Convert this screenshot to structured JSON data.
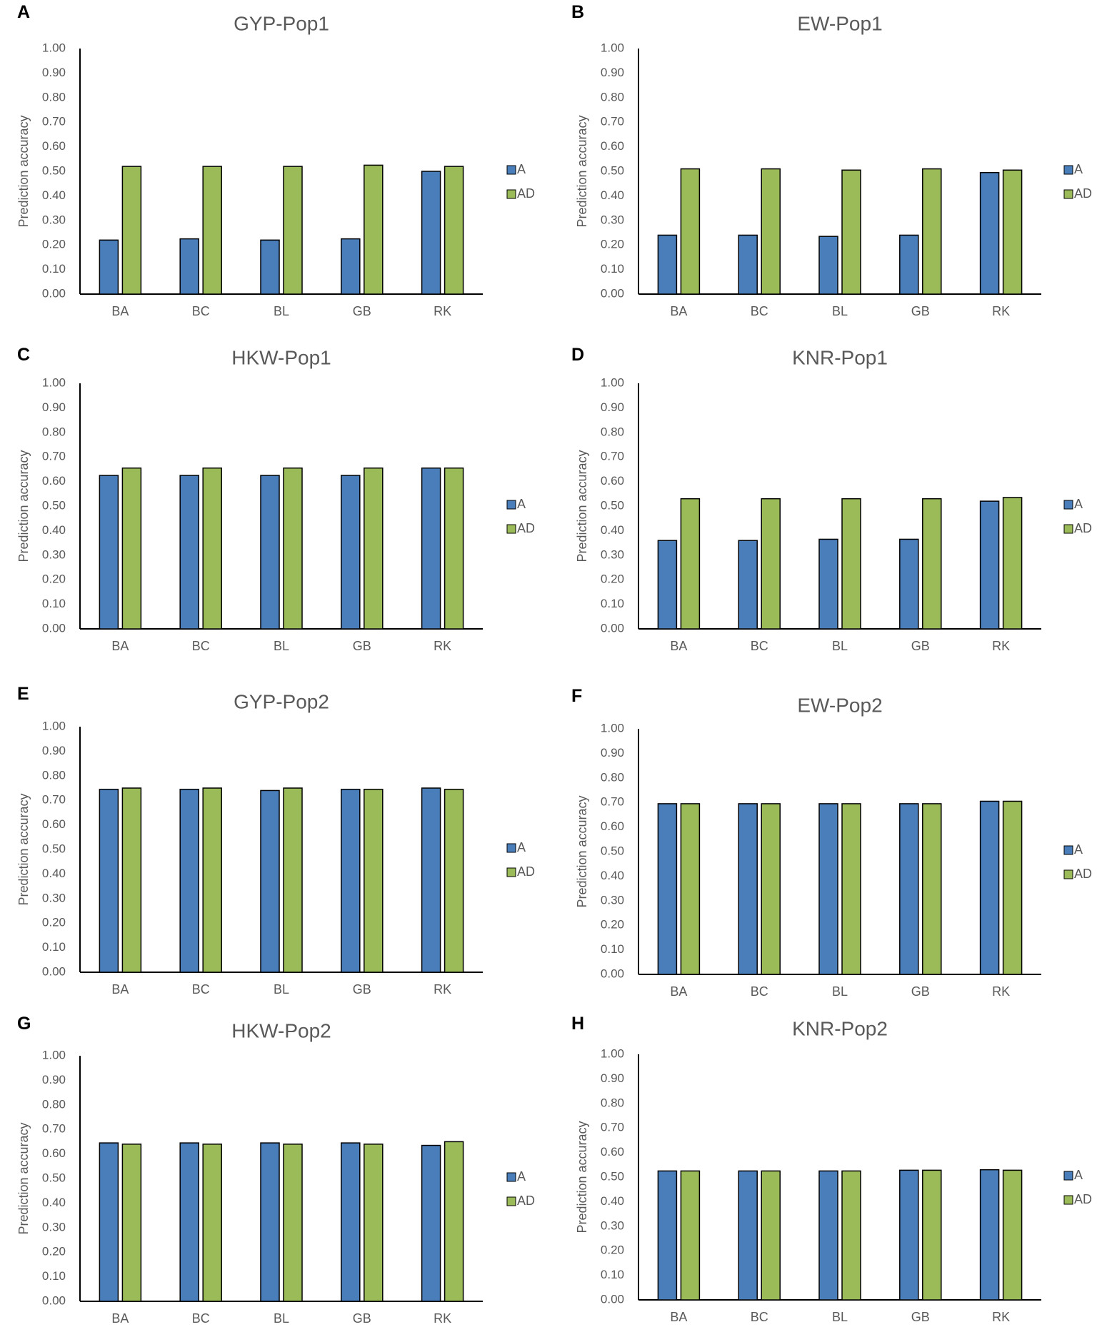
{
  "colors": {
    "A": "#4a7ebb",
    "AD": "#9bbb59",
    "axis": "#000000",
    "text": "#595959",
    "panel_letter": "#000000"
  },
  "chart_data": [
    {
      "panel": "A",
      "type": "bar",
      "title": "GYP-Pop1",
      "ylabel": "Prediction accuracy",
      "xlabel": "",
      "ylim": [
        0,
        1
      ],
      "yticks": [
        "0.00",
        "0.10",
        "0.20",
        "0.30",
        "0.40",
        "0.50",
        "0.60",
        "0.70",
        "0.80",
        "0.90",
        "1.00"
      ],
      "categories": [
        "BA",
        "BC",
        "BL",
        "GB",
        "RK"
      ],
      "grid": false,
      "legend": "right",
      "series": [
        {
          "name": "A",
          "values": [
            0.22,
            0.225,
            0.22,
            0.225,
            0.5
          ]
        },
        {
          "name": "AD",
          "values": [
            0.52,
            0.52,
            0.52,
            0.525,
            0.52
          ]
        }
      ]
    },
    {
      "panel": "B",
      "type": "bar",
      "title": "EW-Pop1",
      "ylabel": "Prediction accuracy",
      "xlabel": "",
      "ylim": [
        0,
        1
      ],
      "yticks": [
        "0.00",
        "0.10",
        "0.20",
        "0.30",
        "0.40",
        "0.50",
        "0.60",
        "0.70",
        "0.80",
        "0.90",
        "1.00"
      ],
      "categories": [
        "BA",
        "BC",
        "BL",
        "GB",
        "RK"
      ],
      "grid": false,
      "legend": "right",
      "series": [
        {
          "name": "A",
          "values": [
            0.24,
            0.24,
            0.235,
            0.24,
            0.495
          ]
        },
        {
          "name": "AD",
          "values": [
            0.51,
            0.51,
            0.505,
            0.51,
            0.505
          ]
        }
      ]
    },
    {
      "panel": "C",
      "type": "bar",
      "title": "HKW-Pop1",
      "ylabel": "Prediction accuracy",
      "xlabel": "",
      "ylim": [
        0,
        1
      ],
      "yticks": [
        "0.00",
        "0.10",
        "0.20",
        "0.30",
        "0.40",
        "0.50",
        "0.60",
        "0.70",
        "0.80",
        "0.90",
        "1.00"
      ],
      "categories": [
        "BA",
        "BC",
        "BL",
        "GB",
        "RK"
      ],
      "grid": false,
      "legend": "right",
      "series": [
        {
          "name": "A",
          "values": [
            0.625,
            0.625,
            0.625,
            0.625,
            0.655
          ]
        },
        {
          "name": "AD",
          "values": [
            0.655,
            0.655,
            0.655,
            0.655,
            0.655
          ]
        }
      ]
    },
    {
      "panel": "D",
      "type": "bar",
      "title": "KNR-Pop1",
      "ylabel": "Prediction accuracy",
      "xlabel": "",
      "ylim": [
        0,
        1
      ],
      "yticks": [
        "0.00",
        "0.10",
        "0.20",
        "0.30",
        "0.40",
        "0.50",
        "0.60",
        "0.70",
        "0.80",
        "0.90",
        "1.00"
      ],
      "categories": [
        "BA",
        "BC",
        "BL",
        "GB",
        "RK"
      ],
      "grid": false,
      "legend": "right",
      "series": [
        {
          "name": "A",
          "values": [
            0.36,
            0.36,
            0.365,
            0.365,
            0.52
          ]
        },
        {
          "name": "AD",
          "values": [
            0.53,
            0.53,
            0.53,
            0.53,
            0.535
          ]
        }
      ]
    },
    {
      "panel": "E",
      "type": "bar",
      "title": "GYP-Pop2",
      "ylabel": "Prediction accuracy",
      "xlabel": "",
      "ylim": [
        0,
        1
      ],
      "yticks": [
        "0.00",
        "0.10",
        "0.20",
        "0.30",
        "0.40",
        "0.50",
        "0.60",
        "0.70",
        "0.80",
        "0.90",
        "1.00"
      ],
      "categories": [
        "BA",
        "BC",
        "BL",
        "GB",
        "RK"
      ],
      "grid": false,
      "legend": "right",
      "series": [
        {
          "name": "A",
          "values": [
            0.745,
            0.745,
            0.74,
            0.745,
            0.75
          ]
        },
        {
          "name": "AD",
          "values": [
            0.75,
            0.75,
            0.75,
            0.745,
            0.745
          ]
        }
      ]
    },
    {
      "panel": "F",
      "type": "bar",
      "title": "EW-Pop2",
      "ylabel": "Prediction accuracy",
      "xlabel": "",
      "ylim": [
        0,
        1
      ],
      "yticks": [
        "0.00",
        "0.10",
        "0.20",
        "0.30",
        "0.40",
        "0.50",
        "0.60",
        "0.70",
        "0.80",
        "0.90",
        "1.00"
      ],
      "categories": [
        "BA",
        "BC",
        "BL",
        "GB",
        "RK"
      ],
      "grid": false,
      "legend": "right",
      "series": [
        {
          "name": "A",
          "values": [
            0.695,
            0.695,
            0.695,
            0.695,
            0.705
          ]
        },
        {
          "name": "AD",
          "values": [
            0.695,
            0.695,
            0.695,
            0.695,
            0.705
          ]
        }
      ]
    },
    {
      "panel": "G",
      "type": "bar",
      "title": "HKW-Pop2",
      "ylabel": "Prediction accuracy",
      "xlabel": "",
      "ylim": [
        0,
        1
      ],
      "yticks": [
        "0.00",
        "0.10",
        "0.20",
        "0.30",
        "0.40",
        "0.50",
        "0.60",
        "0.70",
        "0.80",
        "0.90",
        "1.00"
      ],
      "categories": [
        "BA",
        "BC",
        "BL",
        "GB",
        "RK"
      ],
      "grid": false,
      "legend": "right",
      "series": [
        {
          "name": "A",
          "values": [
            0.645,
            0.645,
            0.645,
            0.645,
            0.635
          ]
        },
        {
          "name": "AD",
          "values": [
            0.64,
            0.64,
            0.64,
            0.64,
            0.65
          ]
        }
      ]
    },
    {
      "panel": "H",
      "type": "bar",
      "title": "KNR-Pop2",
      "ylabel": "Prediction accuracy",
      "xlabel": "",
      "ylim": [
        0,
        1
      ],
      "yticks": [
        "0.00",
        "0.10",
        "0.20",
        "0.30",
        "0.40",
        "0.50",
        "0.60",
        "0.70",
        "0.80",
        "0.90",
        "1.00"
      ],
      "categories": [
        "BA",
        "BC",
        "BL",
        "GB",
        "RK"
      ],
      "grid": false,
      "legend": "right",
      "series": [
        {
          "name": "A",
          "values": [
            0.525,
            0.525,
            0.525,
            0.528,
            0.53
          ]
        },
        {
          "name": "AD",
          "values": [
            0.525,
            0.525,
            0.525,
            0.528,
            0.528
          ]
        }
      ]
    }
  ]
}
